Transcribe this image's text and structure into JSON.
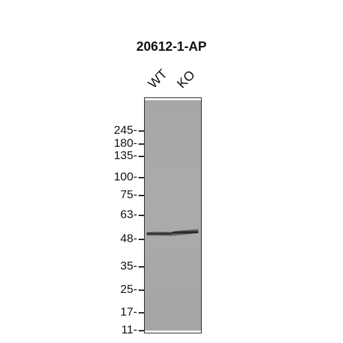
{
  "title": "20612-1-AP",
  "lanes": [
    {
      "label": "WT"
    },
    {
      "label": "KO"
    }
  ],
  "markers": [
    {
      "label": "245-",
      "kda": 245
    },
    {
      "label": "180-",
      "kda": 180
    },
    {
      "label": "135-",
      "kda": 135
    },
    {
      "label": "100-",
      "kda": 100
    },
    {
      "label": "75-",
      "kda": 75
    },
    {
      "label": "63-",
      "kda": 63
    },
    {
      "label": "48-",
      "kda": 48
    },
    {
      "label": "35-",
      "kda": 35
    },
    {
      "label": "25-",
      "kda": 25
    },
    {
      "label": "17-",
      "kda": 17
    },
    {
      "label": "11-",
      "kda": 11
    }
  ],
  "band": {
    "approx_kda": 52,
    "present_in": [
      "WT",
      "KO"
    ]
  },
  "colors": {
    "membrane": "#a9a9a9",
    "band": "#1e1e1e",
    "text": "#111111"
  }
}
